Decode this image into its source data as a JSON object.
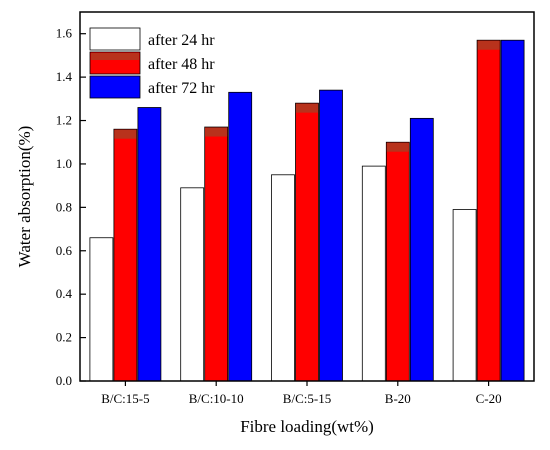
{
  "chart_data": {
    "type": "bar",
    "title": "",
    "xlabel": "Fibre loading(wt%)",
    "ylabel": "Water absorption(%)",
    "categories": [
      "B/C:15-5",
      "B/C:10-10",
      "B/C:5-15",
      "B-20",
      "C-20"
    ],
    "ylim": [
      0,
      1.7
    ],
    "yticks": [
      0.0,
      0.2,
      0.4,
      0.6,
      0.8,
      1.0,
      1.2,
      1.4,
      1.6
    ],
    "ytick_labels": [
      "0.0",
      "0.2",
      "0.4",
      "0.6",
      "0.8",
      "1.0",
      "1.2",
      "1.4",
      "1.6"
    ],
    "grid": false,
    "legend_position": "top-left",
    "series": [
      {
        "name": "after 24 hr",
        "color": "#ffffff",
        "values": [
          0.66,
          0.89,
          0.95,
          0.99,
          0.79
        ]
      },
      {
        "name": "after 48 hr",
        "color": "#ff0000",
        "cap_color": "#b8321c",
        "values": [
          1.16,
          1.17,
          1.28,
          1.1,
          1.57
        ]
      },
      {
        "name": "after 72 hr",
        "color": "#0000ff",
        "values": [
          1.26,
          1.33,
          1.34,
          1.21,
          1.57
        ]
      }
    ]
  }
}
